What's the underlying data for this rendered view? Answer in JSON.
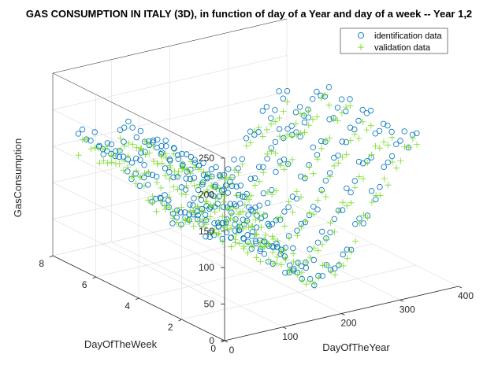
{
  "chart_data": {
    "type": "scatter3d",
    "title": "GAS CONSUMPTION IN ITALY (3D), in function of day of a Year and day of a week -- Year 1,2",
    "xlabel": "DayOfTheYear",
    "ylabel": "DayOfTheWeek",
    "zlabel": "GasConsumption",
    "xlim": [
      0,
      400
    ],
    "ylim": [
      0,
      8
    ],
    "zlim": [
      0,
      250
    ],
    "xticks": [
      "0",
      "100",
      "200",
      "300",
      "400"
    ],
    "yticks": [
      "0",
      "2",
      "4",
      "6",
      "8"
    ],
    "zticks": [
      "0",
      "50",
      "100",
      "150",
      "200",
      "250"
    ],
    "grid": true,
    "legend_position": "top-right",
    "legend": [
      "identification data",
      "validation data"
    ],
    "colors": {
      "identification": "#0072BD",
      "validation": "#77DD22",
      "axis": "#262626",
      "grid": "#dcdcdc"
    },
    "series": [
      {
        "name": "identification data",
        "marker": "circle",
        "approx_range": "x 1-365, y 1-7, z 20-245",
        "count_shown": 365
      },
      {
        "name": "validation data",
        "marker": "plus",
        "approx_range": "x 1-365, y 1-7, z 15-230",
        "count_shown": 365
      }
    ]
  }
}
